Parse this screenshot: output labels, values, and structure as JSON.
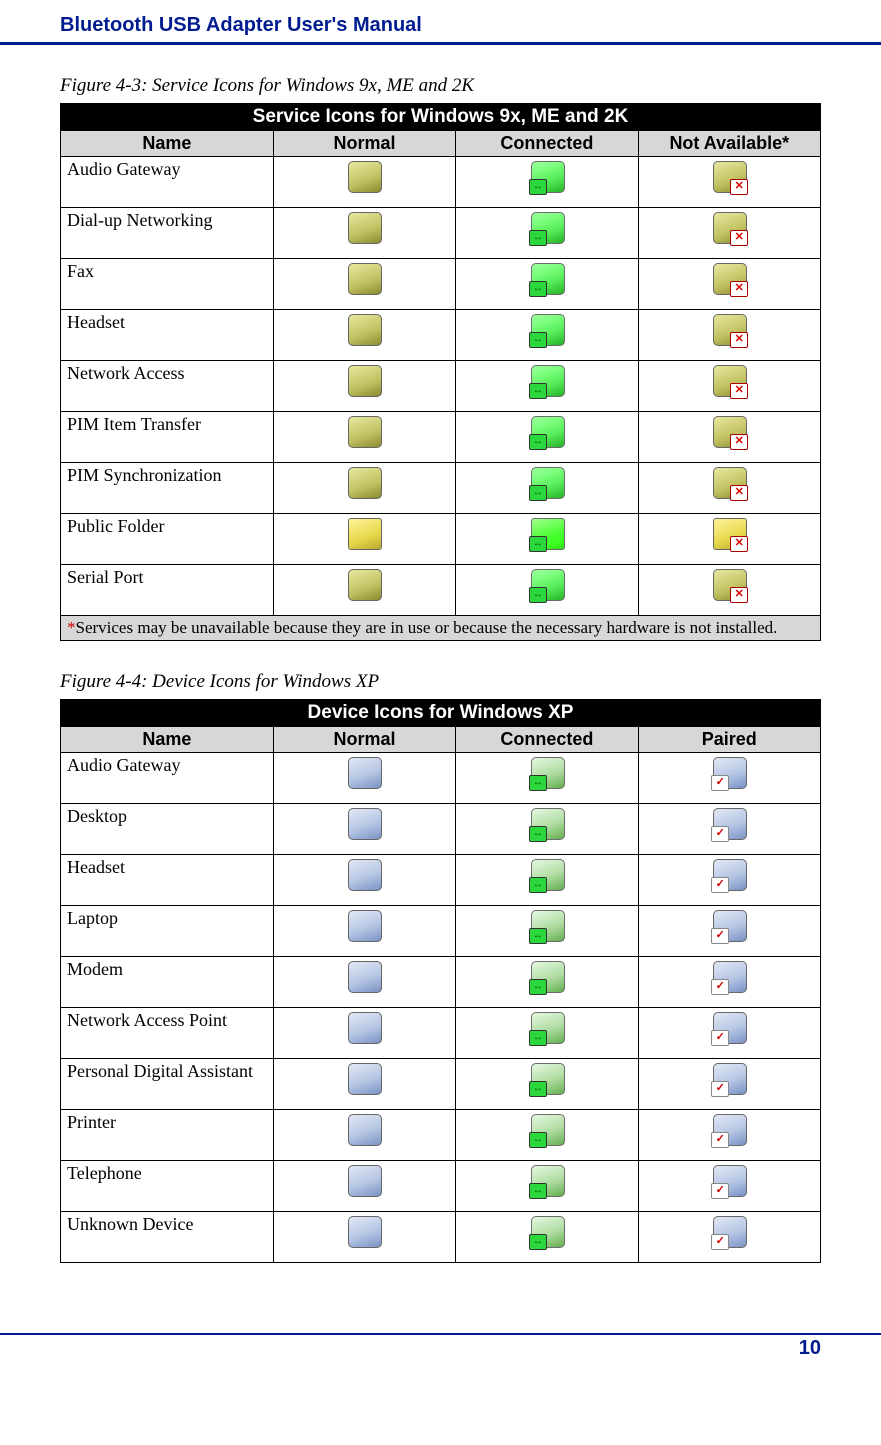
{
  "header": {
    "title": "Bluetooth USB Adapter User's Manual"
  },
  "footer": {
    "page_number": "10"
  },
  "table1": {
    "caption": "Figure 4-3: Service Icons for Windows 9x, ME and 2K",
    "title": "Service Icons for Windows 9x, ME and 2K",
    "columns": [
      "Name",
      "Normal",
      "Connected",
      "Not Available*"
    ],
    "rows": [
      "Audio Gateway",
      "Dial-up Networking",
      "Fax",
      "Headset",
      "Network Access",
      "PIM Item Transfer",
      "PIM Synchronization",
      "Public Folder",
      "Serial Port"
    ],
    "footnote_prefix": "*",
    "footnote_text": "Services may be unavailable because they are in use or because the necessary hardware is not installed."
  },
  "table2": {
    "caption": "Figure 4-4: Device Icons for Windows XP",
    "title": "Device Icons for Windows XP",
    "columns": [
      "Name",
      "Normal",
      "Connected",
      "Paired"
    ],
    "rows": [
      "Audio Gateway",
      "Desktop",
      "Headset",
      "Laptop",
      "Modem",
      "Network Access Point",
      "Personal Digital Assistant",
      "Printer",
      "Telephone",
      "Unknown Device"
    ]
  }
}
